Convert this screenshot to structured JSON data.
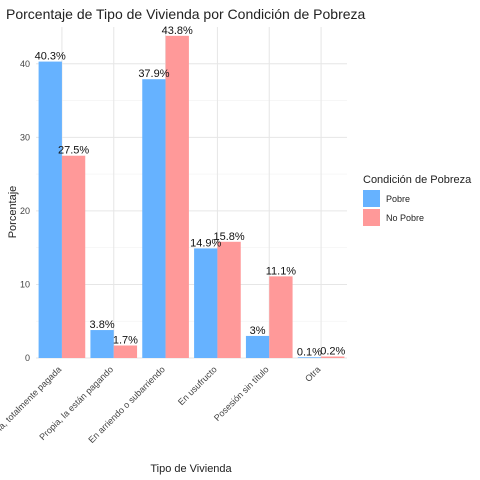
{
  "chart_data": {
    "type": "bar",
    "title": "Porcentaje de Tipo de Vivienda por Condición de Pobreza",
    "xlabel": "Tipo de Vivienda",
    "ylabel": "Porcentaje",
    "ylim": [
      0,
      45
    ],
    "yticks": [
      0,
      10,
      20,
      30,
      40
    ],
    "grid": true,
    "legend": {
      "title": "Condición de Pobreza",
      "placement": "right"
    },
    "categories": [
      "Propia, totalmente pagada",
      "Propia, la están pagando",
      "En arriendo o subarriendo",
      "En usufructo",
      "Posesión sin título",
      "Otra"
    ],
    "series": [
      {
        "name": "Pobre",
        "color": "#66b2ff",
        "values": [
          40.3,
          3.8,
          37.9,
          14.9,
          3.0,
          0.1
        ],
        "labels": [
          "40.3%",
          "3.8%",
          "37.9%",
          "14.9%",
          "3%",
          "0.1%"
        ]
      },
      {
        "name": "No Pobre",
        "color": "#ff9999",
        "values": [
          27.5,
          1.7,
          43.8,
          15.8,
          11.1,
          0.2
        ],
        "labels": [
          "27.5%",
          "1.7%",
          "43.8%",
          "15.8%",
          "11.1%",
          "0.2%"
        ]
      }
    ]
  }
}
